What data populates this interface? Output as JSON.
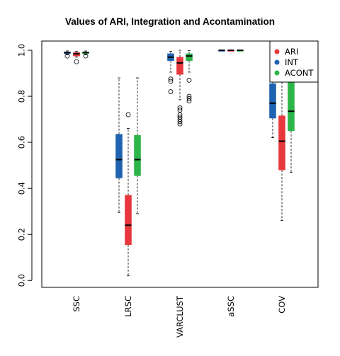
{
  "chart_data": {
    "type": "boxplot",
    "title": "Values of ARI, Integration and Acontamination",
    "xlabel": "",
    "ylabel": "",
    "ylim": [
      -0.03,
      1.04
    ],
    "yticks": [
      0.0,
      0.2,
      0.4,
      0.6,
      0.8,
      1.0
    ],
    "ytick_labels": [
      "0.0",
      "0.2",
      "0.4",
      "0.6",
      "0.8",
      "1.0"
    ],
    "categories": [
      "SSC",
      "LRSC",
      "VARCLUST",
      "aSSC",
      "COV"
    ],
    "legend": {
      "placement": "top-right",
      "entries": [
        "ARI",
        "INT",
        "ACONT"
      ]
    },
    "series": [
      {
        "name": "INT",
        "color": "#1f63b0",
        "boxes": [
          {
            "whisker_low": 0.98,
            "q1": 0.985,
            "median": 0.99,
            "q3": 0.993,
            "whisker_high": 0.997,
            "outliers": [
              0.975
            ]
          },
          {
            "whisker_low": 0.295,
            "q1": 0.445,
            "median": 0.525,
            "q3": 0.635,
            "whisker_high": 0.88,
            "outliers": []
          },
          {
            "whisker_low": 0.905,
            "q1": 0.955,
            "median": 0.97,
            "q3": 0.985,
            "whisker_high": 0.995,
            "outliers": [
              0.875,
              0.865,
              0.82
            ]
          },
          {
            "whisker_low": 1.0,
            "q1": 1.0,
            "median": 1.0,
            "q3": 1.0,
            "whisker_high": 1.0,
            "outliers": []
          },
          {
            "whisker_low": 0.62,
            "q1": 0.705,
            "median": 0.77,
            "q3": 0.855,
            "whisker_high": 0.94,
            "outliers": []
          }
        ]
      },
      {
        "name": "ARI",
        "color": "#e8383d",
        "boxes": [
          {
            "whisker_low": 0.97,
            "q1": 0.975,
            "median": 0.985,
            "q3": 0.99,
            "whisker_high": 0.995,
            "outliers": [
              0.95
            ]
          },
          {
            "whisker_low": 0.02,
            "q1": 0.155,
            "median": 0.24,
            "q3": 0.37,
            "whisker_high": 0.66,
            "outliers": [
              0.72
            ]
          },
          {
            "whisker_low": 0.785,
            "q1": 0.895,
            "median": 0.945,
            "q3": 0.97,
            "whisker_high": 1.0,
            "outliers": [
              0.75,
              0.74,
              0.72,
              0.71,
              0.7,
              0.69,
              0.68
            ]
          },
          {
            "whisker_low": 1.0,
            "q1": 1.0,
            "median": 1.0,
            "q3": 1.0,
            "whisker_high": 1.0,
            "outliers": []
          },
          {
            "whisker_low": 0.26,
            "q1": 0.48,
            "median": 0.605,
            "q3": 0.715,
            "whisker_high": 0.9,
            "outliers": []
          }
        ]
      },
      {
        "name": "ACONT",
        "color": "#2db54a",
        "boxes": [
          {
            "whisker_low": 0.98,
            "q1": 0.985,
            "median": 0.99,
            "q3": 0.993,
            "whisker_high": 0.997,
            "outliers": [
              0.975
            ]
          },
          {
            "whisker_low": 0.29,
            "q1": 0.455,
            "median": 0.525,
            "q3": 0.63,
            "whisker_high": 0.88,
            "outliers": []
          },
          {
            "whisker_low": 0.905,
            "q1": 0.955,
            "median": 0.975,
            "q3": 0.985,
            "whisker_high": 0.998,
            "outliers": [
              0.87,
              0.8,
              0.79,
              0.78
            ]
          },
          {
            "whisker_low": 1.0,
            "q1": 1.0,
            "median": 1.0,
            "q3": 1.0,
            "whisker_high": 1.0,
            "outliers": []
          },
          {
            "whisker_low": 0.47,
            "q1": 0.65,
            "median": 0.735,
            "q3": 0.87,
            "whisker_high": 0.95,
            "outliers": []
          }
        ]
      }
    ]
  }
}
